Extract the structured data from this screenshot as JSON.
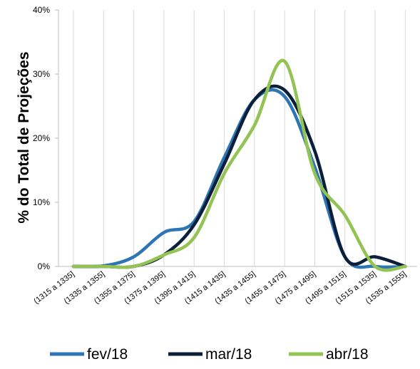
{
  "chart_data": {
    "type": "line",
    "title": "",
    "xlabel": "",
    "ylabel": "% do Total de Projeções",
    "categories": [
      "(1315 a 1335]",
      "(1335 a 1355]",
      "(1355 a 1375]",
      "(1375 a 1395]",
      "(1395 a 1415]",
      "(1415 a 1435]",
      "(1435 a 1455]",
      "(1455 a 1475]",
      "(1475 a 1495]",
      "(1495 a 1515]",
      "(1515 a 1535]",
      "(1535 a 1555]"
    ],
    "ylim": [
      0,
      40
    ],
    "yticks": [
      0,
      10,
      20,
      30,
      40
    ],
    "ytick_labels": [
      "0%",
      "10%",
      "20%",
      "30%",
      "40%"
    ],
    "grid": "vertical",
    "legend_position": "bottom",
    "series": [
      {
        "name": "fev/18",
        "color": "#2e75b6",
        "values": [
          0.0,
          0.1,
          1.5,
          5.3,
          7.0,
          17.0,
          26.0,
          26.5,
          15.5,
          1.5,
          0.0,
          0.0
        ]
      },
      {
        "name": "mar/18",
        "color": "#0b1f3a",
        "values": [
          0.0,
          0.0,
          0.0,
          1.8,
          6.5,
          16.0,
          26.0,
          27.5,
          18.0,
          1.5,
          1.5,
          0.0
        ]
      },
      {
        "name": "abr/18",
        "color": "#92c353",
        "values": [
          0.0,
          0.0,
          0.0,
          1.8,
          4.5,
          14.5,
          22.0,
          32.0,
          14.5,
          8.0,
          0.0,
          0.0
        ]
      }
    ]
  }
}
